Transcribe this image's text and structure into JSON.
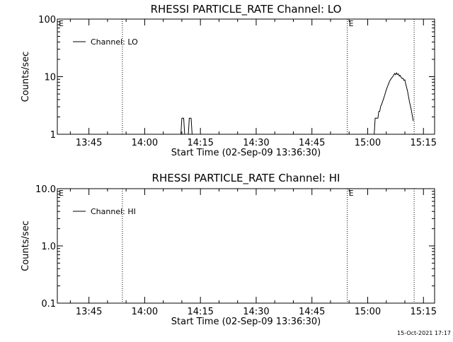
{
  "chart_data": [
    {
      "type": "line",
      "title": "RHESSI PARTICLE_RATE Channel: LO",
      "xlabel": "Start Time (02-Sep-09 13:36:30)",
      "ylabel": "Counts/sec",
      "y_scale": "log",
      "ylim": [
        1,
        100
      ],
      "y_ticks": [
        1,
        10,
        100
      ],
      "y_tick_labels": [
        "1",
        "10",
        "100"
      ],
      "xlim": [
        "13:36:30",
        "15:18:00"
      ],
      "x_ticks": [
        "13:45",
        "14:00",
        "14:15",
        "14:30",
        "14:45",
        "15:00",
        "15:15"
      ],
      "legend": {
        "placement": "top-left",
        "entries": [
          "Channel: LO"
        ]
      },
      "grid": false,
      "vlines": [
        "13:54:00",
        "14:54:30",
        "15:12:30"
      ],
      "vline_labels": [
        {
          "time": "13:36:30",
          "text": "E"
        },
        {
          "time": "14:54:30",
          "text": "E"
        }
      ],
      "series": [
        {
          "name": "Channel: LO",
          "x": [
            "14:09:45",
            "14:10:00",
            "14:10:15",
            "14:10:30",
            "14:10:45",
            "14:11:45",
            "14:12:00",
            "14:12:15",
            "14:12:30",
            "14:12:45",
            "15:01:45",
            "15:02:00",
            "15:02:15",
            "15:02:30",
            "15:02:45",
            "15:03:00",
            "15:03:15",
            "15:03:30",
            "15:03:45",
            "15:04:00",
            "15:04:15",
            "15:04:30",
            "15:04:45",
            "15:05:00",
            "15:05:15",
            "15:05:30",
            "15:05:45",
            "15:06:00",
            "15:06:15",
            "15:06:30",
            "15:06:45",
            "15:07:00",
            "15:07:15",
            "15:07:30",
            "15:07:45",
            "15:08:00",
            "15:08:15",
            "15:08:30",
            "15:08:45",
            "15:09:00",
            "15:09:15",
            "15:09:30",
            "15:09:45",
            "15:10:00",
            "15:10:15",
            "15:10:30",
            "15:10:45",
            "15:11:00",
            "15:11:15",
            "15:11:30",
            "15:11:45",
            "15:12:00",
            "15:12:15"
          ],
          "y": [
            1,
            1.9,
            1.9,
            1.9,
            1,
            1,
            1.9,
            1.9,
            1.9,
            1,
            1,
            1.9,
            1.9,
            1.9,
            1.9,
            2.5,
            2.5,
            3.1,
            3.3,
            3.7,
            4.1,
            4.6,
            5.2,
            5.9,
            6.5,
            7.2,
            7.9,
            8.6,
            9.1,
            9.6,
            10,
            10.6,
            11.4,
            10.8,
            11.6,
            10.9,
            11.2,
            10.3,
            10.5,
            9.7,
            9.3,
            9.4,
            8.6,
            8.8,
            7.4,
            6.4,
            5.5,
            4.5,
            3.6,
            3.1,
            2.6,
            2.1,
            1.7
          ]
        }
      ]
    },
    {
      "type": "line",
      "title": "RHESSI PARTICLE_RATE Channel: HI",
      "xlabel": "Start Time (02-Sep-09 13:36:30)",
      "ylabel": "Counts/sec",
      "y_scale": "log",
      "ylim": [
        0.1,
        10
      ],
      "y_ticks": [
        0.1,
        1,
        10
      ],
      "y_tick_labels": [
        "0.1",
        "1.0",
        "10.0"
      ],
      "xlim": [
        "13:36:30",
        "15:18:00"
      ],
      "x_ticks": [
        "13:45",
        "14:00",
        "14:15",
        "14:30",
        "14:45",
        "15:00",
        "15:15"
      ],
      "legend": {
        "placement": "top-left",
        "entries": [
          "Channel: HI"
        ]
      },
      "grid": false,
      "vlines": [
        "13:54:00",
        "14:54:30",
        "15:12:30"
      ],
      "vline_labels": [
        {
          "time": "13:36:30",
          "text": "E"
        },
        {
          "time": "14:54:30",
          "text": "E"
        }
      ],
      "series": [
        {
          "name": "Channel: HI",
          "x": [],
          "y": []
        }
      ]
    }
  ],
  "footer": {
    "date_stamp": "15-Oct-2021 17:17"
  }
}
